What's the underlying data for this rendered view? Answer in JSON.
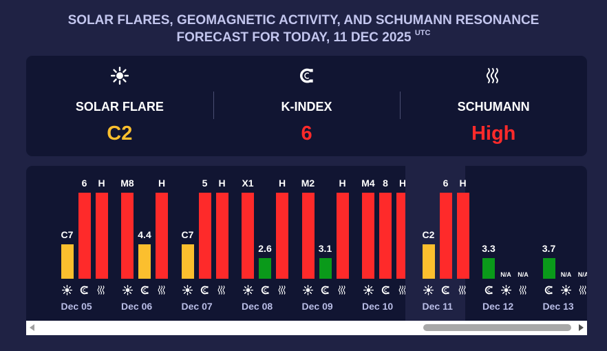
{
  "header": {
    "title_line1": "SOLAR FLARES, GEOMAGNETIC ACTIVITY, AND SCHUMANN RESONANCE",
    "title_line2": "FORECAST FOR TODAY, 11 DEC 2025",
    "title_sup": "UTC"
  },
  "summary": [
    {
      "icon": "sun-icon",
      "label": "SOLAR FLARE",
      "value": "C2",
      "color": "#fbbf2e"
    },
    {
      "icon": "magnet-icon",
      "label": "K-INDEX",
      "value": "6",
      "color": "#fe2a2a"
    },
    {
      "icon": "waves-icon",
      "label": "SCHUMANN",
      "value": "High",
      "color": "#fe2a2a"
    }
  ],
  "colors": {
    "yellow": "#fbbf2e",
    "red": "#fe2a2a",
    "green": "#0a9a1a"
  },
  "chart_data": {
    "type": "bar",
    "series": [
      {
        "name": "Solar Flare"
      },
      {
        "name": "K-Index"
      },
      {
        "name": "Schumann"
      }
    ],
    "days": [
      {
        "date": "",
        "partial": true,
        "bars": [
          {
            "label": "",
            "level": 0.4,
            "color": "yellow"
          }
        ]
      },
      {
        "date": "Dec 05",
        "bars": [
          {
            "label": "C7",
            "level": 0.4,
            "color": "yellow"
          },
          {
            "label": "6",
            "level": 1.0,
            "color": "red"
          },
          {
            "label": "H",
            "level": 1.0,
            "color": "red"
          }
        ]
      },
      {
        "date": "Dec 06",
        "bars": [
          {
            "label": "M8",
            "level": 1.0,
            "color": "red"
          },
          {
            "label": "4.4",
            "level": 0.4,
            "color": "yellow"
          },
          {
            "label": "H",
            "level": 1.0,
            "color": "red"
          }
        ]
      },
      {
        "date": "Dec 07",
        "bars": [
          {
            "label": "C7",
            "level": 0.4,
            "color": "yellow"
          },
          {
            "label": "5",
            "level": 1.0,
            "color": "red"
          },
          {
            "label": "H",
            "level": 1.0,
            "color": "red"
          }
        ]
      },
      {
        "date": "Dec 08",
        "bars": [
          {
            "label": "X1",
            "level": 1.0,
            "color": "red"
          },
          {
            "label": "2.6",
            "level": 0.24,
            "color": "green"
          },
          {
            "label": "H",
            "level": 1.0,
            "color": "red"
          }
        ]
      },
      {
        "date": "Dec 09",
        "bars": [
          {
            "label": "M2",
            "level": 1.0,
            "color": "red"
          },
          {
            "label": "3.1",
            "level": 0.24,
            "color": "green"
          },
          {
            "label": "H",
            "level": 1.0,
            "color": "red"
          }
        ]
      },
      {
        "date": "Dec 10",
        "bars": [
          {
            "label": "M4",
            "level": 1.0,
            "color": "red"
          },
          {
            "label": "8",
            "level": 1.0,
            "color": "red"
          },
          {
            "label": "H",
            "level": 1.0,
            "color": "red"
          }
        ]
      },
      {
        "date": "Dec 11",
        "today": true,
        "bars": [
          {
            "label": "C2",
            "level": 0.4,
            "color": "yellow"
          },
          {
            "label": "6",
            "level": 1.0,
            "color": "red"
          },
          {
            "label": "H",
            "level": 1.0,
            "color": "red"
          }
        ]
      },
      {
        "date": "Dec 12",
        "order": "magnet-first",
        "bars": [
          {
            "label": "3.3",
            "level": 0.24,
            "color": "green"
          },
          {
            "label": "N/A",
            "level": 0,
            "color": "none"
          },
          {
            "label": "N/A",
            "level": 0,
            "color": "none"
          }
        ]
      },
      {
        "date": "Dec 13",
        "order": "magnet-first",
        "bars": [
          {
            "label": "3.7",
            "level": 0.24,
            "color": "green"
          },
          {
            "label": "N/A",
            "level": 0,
            "color": "none"
          },
          {
            "label": "N/A",
            "level": 0,
            "color": "none"
          }
        ]
      }
    ]
  }
}
